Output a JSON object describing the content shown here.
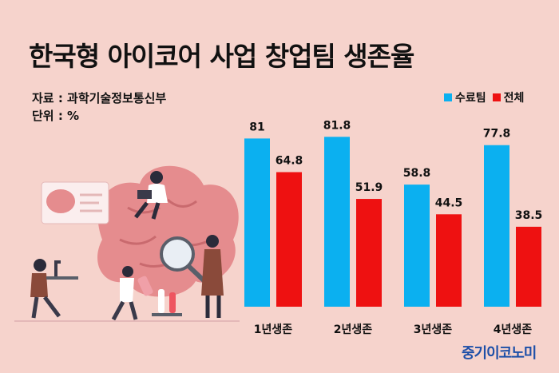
{
  "title": "한국형 아이코어 사업 창업팀 생존율",
  "source": "자료 : 과학기술정보통신부",
  "unit": "단위 : %",
  "logo": "중기이코노미",
  "colors": {
    "background": "#f6d3cc",
    "completed": "#0bb0f0",
    "total": "#ee1111"
  },
  "chart_data": {
    "type": "bar",
    "categories": [
      "1년생존",
      "2년생존",
      "3년생존",
      "4년생존"
    ],
    "series": [
      {
        "name": "수료팀",
        "values": [
          81,
          81.8,
          58.8,
          77.8
        ]
      },
      {
        "name": "전체",
        "values": [
          64.8,
          51.9,
          44.5,
          38.5
        ]
      }
    ],
    "ylim": [
      0,
      100
    ],
    "legend": "top-right",
    "grid": false
  }
}
